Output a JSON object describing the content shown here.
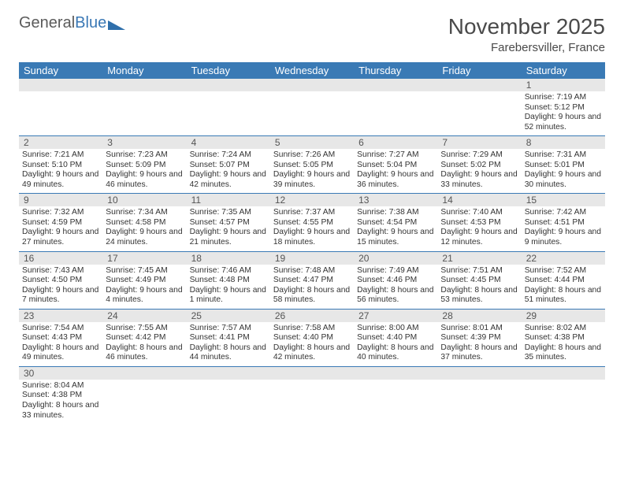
{
  "logo": {
    "part1": "General",
    "part2": "Blue"
  },
  "title": "November 2025",
  "subtitle": "Farebersviller, France",
  "day_names": [
    "Sunday",
    "Monday",
    "Tuesday",
    "Wednesday",
    "Thursday",
    "Friday",
    "Saturday"
  ],
  "colors": {
    "header_bg": "#3a7ab5",
    "daynum_bg": "#e7e7e7",
    "text": "#333333"
  },
  "weeks": [
    [
      {
        "n": "",
        "t": ""
      },
      {
        "n": "",
        "t": ""
      },
      {
        "n": "",
        "t": ""
      },
      {
        "n": "",
        "t": ""
      },
      {
        "n": "",
        "t": ""
      },
      {
        "n": "",
        "t": ""
      },
      {
        "n": "1",
        "t": "Sunrise: 7:19 AM\nSunset: 5:12 PM\nDaylight: 9 hours and 52 minutes."
      }
    ],
    [
      {
        "n": "2",
        "t": "Sunrise: 7:21 AM\nSunset: 5:10 PM\nDaylight: 9 hours and 49 minutes."
      },
      {
        "n": "3",
        "t": "Sunrise: 7:23 AM\nSunset: 5:09 PM\nDaylight: 9 hours and 46 minutes."
      },
      {
        "n": "4",
        "t": "Sunrise: 7:24 AM\nSunset: 5:07 PM\nDaylight: 9 hours and 42 minutes."
      },
      {
        "n": "5",
        "t": "Sunrise: 7:26 AM\nSunset: 5:05 PM\nDaylight: 9 hours and 39 minutes."
      },
      {
        "n": "6",
        "t": "Sunrise: 7:27 AM\nSunset: 5:04 PM\nDaylight: 9 hours and 36 minutes."
      },
      {
        "n": "7",
        "t": "Sunrise: 7:29 AM\nSunset: 5:02 PM\nDaylight: 9 hours and 33 minutes."
      },
      {
        "n": "8",
        "t": "Sunrise: 7:31 AM\nSunset: 5:01 PM\nDaylight: 9 hours and 30 minutes."
      }
    ],
    [
      {
        "n": "9",
        "t": "Sunrise: 7:32 AM\nSunset: 4:59 PM\nDaylight: 9 hours and 27 minutes."
      },
      {
        "n": "10",
        "t": "Sunrise: 7:34 AM\nSunset: 4:58 PM\nDaylight: 9 hours and 24 minutes."
      },
      {
        "n": "11",
        "t": "Sunrise: 7:35 AM\nSunset: 4:57 PM\nDaylight: 9 hours and 21 minutes."
      },
      {
        "n": "12",
        "t": "Sunrise: 7:37 AM\nSunset: 4:55 PM\nDaylight: 9 hours and 18 minutes."
      },
      {
        "n": "13",
        "t": "Sunrise: 7:38 AM\nSunset: 4:54 PM\nDaylight: 9 hours and 15 minutes."
      },
      {
        "n": "14",
        "t": "Sunrise: 7:40 AM\nSunset: 4:53 PM\nDaylight: 9 hours and 12 minutes."
      },
      {
        "n": "15",
        "t": "Sunrise: 7:42 AM\nSunset: 4:51 PM\nDaylight: 9 hours and 9 minutes."
      }
    ],
    [
      {
        "n": "16",
        "t": "Sunrise: 7:43 AM\nSunset: 4:50 PM\nDaylight: 9 hours and 7 minutes."
      },
      {
        "n": "17",
        "t": "Sunrise: 7:45 AM\nSunset: 4:49 PM\nDaylight: 9 hours and 4 minutes."
      },
      {
        "n": "18",
        "t": "Sunrise: 7:46 AM\nSunset: 4:48 PM\nDaylight: 9 hours and 1 minute."
      },
      {
        "n": "19",
        "t": "Sunrise: 7:48 AM\nSunset: 4:47 PM\nDaylight: 8 hours and 58 minutes."
      },
      {
        "n": "20",
        "t": "Sunrise: 7:49 AM\nSunset: 4:46 PM\nDaylight: 8 hours and 56 minutes."
      },
      {
        "n": "21",
        "t": "Sunrise: 7:51 AM\nSunset: 4:45 PM\nDaylight: 8 hours and 53 minutes."
      },
      {
        "n": "22",
        "t": "Sunrise: 7:52 AM\nSunset: 4:44 PM\nDaylight: 8 hours and 51 minutes."
      }
    ],
    [
      {
        "n": "23",
        "t": "Sunrise: 7:54 AM\nSunset: 4:43 PM\nDaylight: 8 hours and 49 minutes."
      },
      {
        "n": "24",
        "t": "Sunrise: 7:55 AM\nSunset: 4:42 PM\nDaylight: 8 hours and 46 minutes."
      },
      {
        "n": "25",
        "t": "Sunrise: 7:57 AM\nSunset: 4:41 PM\nDaylight: 8 hours and 44 minutes."
      },
      {
        "n": "26",
        "t": "Sunrise: 7:58 AM\nSunset: 4:40 PM\nDaylight: 8 hours and 42 minutes."
      },
      {
        "n": "27",
        "t": "Sunrise: 8:00 AM\nSunset: 4:40 PM\nDaylight: 8 hours and 40 minutes."
      },
      {
        "n": "28",
        "t": "Sunrise: 8:01 AM\nSunset: 4:39 PM\nDaylight: 8 hours and 37 minutes."
      },
      {
        "n": "29",
        "t": "Sunrise: 8:02 AM\nSunset: 4:38 PM\nDaylight: 8 hours and 35 minutes."
      }
    ],
    [
      {
        "n": "30",
        "t": "Sunrise: 8:04 AM\nSunset: 4:38 PM\nDaylight: 8 hours and 33 minutes."
      },
      {
        "n": "",
        "t": ""
      },
      {
        "n": "",
        "t": ""
      },
      {
        "n": "",
        "t": ""
      },
      {
        "n": "",
        "t": ""
      },
      {
        "n": "",
        "t": ""
      },
      {
        "n": "",
        "t": ""
      }
    ]
  ]
}
